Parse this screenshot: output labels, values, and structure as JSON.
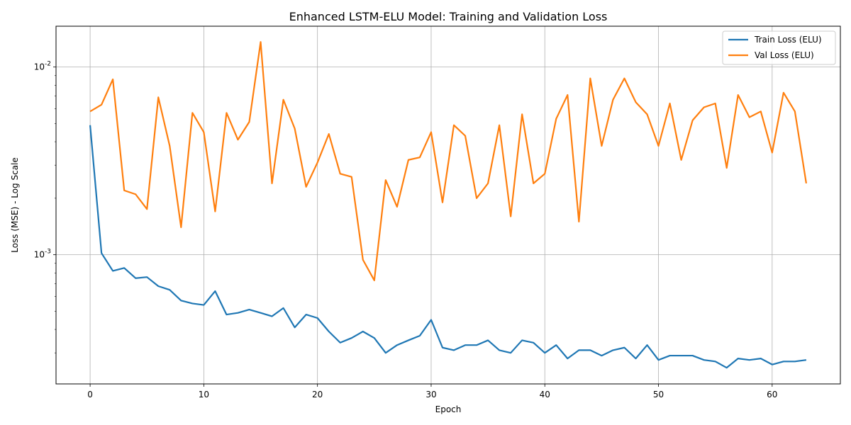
{
  "chart_data": {
    "type": "line",
    "title": "Enhanced LSTM-ELU Model: Training and Validation Loss",
    "xlabel": "Epoch",
    "ylabel": "Loss (MSE) - Log Scale",
    "yscale": "log",
    "xlim": [
      -3,
      66
    ],
    "ylim": [
      0.000205,
      0.0165
    ],
    "xticks": [
      0,
      10,
      20,
      30,
      40,
      50,
      60
    ],
    "xtick_labels": [
      "0",
      "10",
      "20",
      "30",
      "40",
      "50",
      "60"
    ],
    "yticks": [
      0.001,
      0.01
    ],
    "ytick_labels": [
      "10^-3",
      "10^-2"
    ],
    "grid": true,
    "legend_position": "top-right",
    "x": [
      0,
      1,
      2,
      3,
      4,
      5,
      6,
      7,
      8,
      9,
      10,
      11,
      12,
      13,
      14,
      15,
      16,
      17,
      18,
      19,
      20,
      21,
      22,
      23,
      24,
      25,
      26,
      27,
      28,
      29,
      30,
      31,
      32,
      33,
      34,
      35,
      36,
      37,
      38,
      39,
      40,
      41,
      42,
      43,
      44,
      45,
      46,
      47,
      48,
      49,
      50,
      51,
      52,
      53,
      54,
      55,
      56,
      57,
      58,
      59,
      60,
      61,
      62,
      63
    ],
    "series": [
      {
        "name": "Train Loss (ELU)",
        "color": "#1f77b4",
        "values": [
          0.0049,
          0.00102,
          0.00082,
          0.00085,
          0.00075,
          0.00076,
          0.00068,
          0.00065,
          0.00057,
          0.00055,
          0.00054,
          0.00064,
          0.00048,
          0.00049,
          0.00051,
          0.00049,
          0.00047,
          0.00052,
          0.00041,
          0.00048,
          0.00046,
          0.00039,
          0.00034,
          0.00036,
          0.00039,
          0.00036,
          0.0003,
          0.00033,
          0.00035,
          0.00037,
          0.00045,
          0.00032,
          0.00031,
          0.00033,
          0.00033,
          0.00035,
          0.00031,
          0.0003,
          0.00035,
          0.00034,
          0.0003,
          0.00033,
          0.00028,
          0.00031,
          0.00031,
          0.00029,
          0.00031,
          0.00032,
          0.00028,
          0.00033,
          0.000275,
          0.00029,
          0.00029,
          0.00029,
          0.000275,
          0.00027,
          0.00025,
          0.00028,
          0.000275,
          0.00028,
          0.00026,
          0.00027,
          0.00027,
          0.000275
        ]
      },
      {
        "name": "Val Loss (ELU)",
        "color": "#ff7f0e",
        "values": [
          0.0058,
          0.0063,
          0.0086,
          0.0022,
          0.0021,
          0.00175,
          0.0069,
          0.0038,
          0.0014,
          0.0057,
          0.0045,
          0.0017,
          0.0057,
          0.0041,
          0.0051,
          0.0136,
          0.0024,
          0.0067,
          0.0047,
          0.0023,
          0.0031,
          0.0044,
          0.0027,
          0.0026,
          0.00094,
          0.00073,
          0.0025,
          0.0018,
          0.0032,
          0.0033,
          0.0045,
          0.0019,
          0.0049,
          0.0043,
          0.002,
          0.0024,
          0.0049,
          0.0016,
          0.0056,
          0.0024,
          0.0027,
          0.0053,
          0.0071,
          0.0015,
          0.0087,
          0.0038,
          0.0067,
          0.0087,
          0.0065,
          0.0056,
          0.0038,
          0.0064,
          0.0032,
          0.0052,
          0.0061,
          0.0064,
          0.0029,
          0.0071,
          0.0054,
          0.0058,
          0.0035,
          0.0073,
          0.0058,
          0.0024
        ]
      }
    ]
  }
}
